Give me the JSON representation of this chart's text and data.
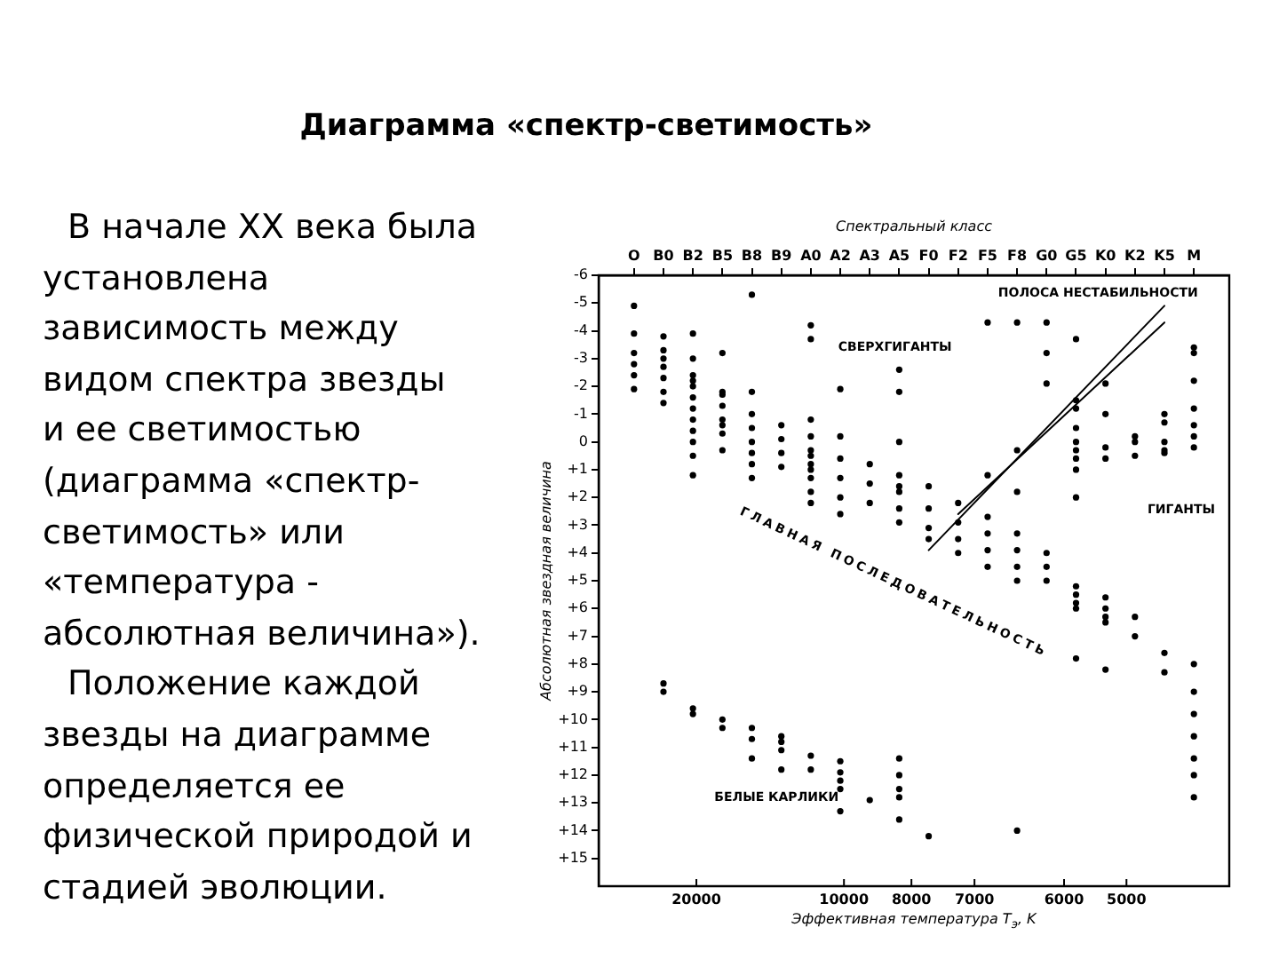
{
  "chart_data": {
    "type": "scatter",
    "title": "Диаграмма «спектр-светимость»",
    "xlabel": "Спектральный класс",
    "x2label": "Эффективная температура T$_{э}$, K",
    "ylabel": "Абсолютная звездная величина",
    "annotations": [
      "В начале XX века была\nустановлена\nзависимость между\nвидом спектра звезды\nи ее светимостью\n(диаграмма «спектр-\nсветимость» или\n«температура -\nабсолютная величина»).",
      "Положение каждой\nзвезды на диаграмме\nопределяется ее\nфизической природой и\nстадией эволюции.",
      "ПОЛОСА НЕСТАБИЛЬНОСТИ",
      "СВЕРХГИГАНТЫ",
      "ГИГАНТЫ",
      "ГЛАВНАЯ ПОСЛЕДОВАТЕЛЬНОСТЬ",
      "БЕЛЫЕ КАРЛИКИ",
      "20000",
      "10000",
      "8000",
      "7000",
      "6000",
      "5000"
    ],
    "categories": [
      "O",
      "B0",
      "B2",
      "B5",
      "B8",
      "B9",
      "A0",
      "A2",
      "A3",
      "A5",
      "F0",
      "F2",
      "F5",
      "F8",
      "G0",
      "G5",
      "K0",
      "K2",
      "K5",
      "M"
    ],
    "ylim": [
      16,
      -6
    ],
    "yticks": [
      -6,
      -5,
      -4,
      -3,
      -2,
      -1,
      0,
      {
        "value": 1,
        "label": "+1"
      },
      {
        "value": 2,
        "label": "+2"
      },
      {
        "value": 3,
        "label": "+3"
      },
      {
        "value": 4,
        "label": "+4"
      },
      {
        "value": 5,
        "label": "+5"
      },
      {
        "value": 6,
        "label": "+6"
      },
      {
        "value": 7,
        "label": "+7"
      },
      {
        "value": 8,
        "label": "+8"
      },
      {
        "value": 9,
        "label": "+9"
      },
      {
        "value": 10,
        "label": "+10"
      },
      {
        "value": 11,
        "label": "+11"
      },
      {
        "value": 12,
        "label": "+12"
      },
      {
        "value": 13,
        "label": "+13"
      },
      {
        "value": 14,
        "label": "+14"
      },
      {
        "value": 15,
        "label": "+15"
      }
    ],
    "marker": "circle",
    "series": [
      {
        "color": "#000000",
        "x": [
          "O",
          "O",
          "O",
          "O",
          "O",
          "O",
          "B0",
          "B0",
          "B0",
          "B0",
          "B0",
          "B0",
          "B0",
          "B2",
          "B2",
          "B2",
          "B2",
          "B2",
          "B2",
          "B2",
          "B2",
          "B2",
          "B2",
          "B2",
          "B2",
          "B5",
          "B5",
          "B5",
          "B5",
          "B5",
          "B5",
          "B5",
          "B5",
          "B8",
          "B8",
          "B8",
          "B8",
          "B8",
          "B8",
          "B8",
          "B8",
          "B9",
          "B9",
          "B9",
          "B9",
          "A0",
          "A0",
          "A0",
          "A0",
          "A0",
          "A0",
          "A0",
          "A0",
          "A0",
          "A0",
          "A0",
          "A2",
          "A2",
          "A2",
          "A2",
          "A2",
          "A2",
          "A3",
          "A3",
          "A3",
          "A5",
          "A5",
          "A5",
          "A5",
          "A5",
          "A5",
          "A5",
          "A5",
          "F0",
          "F0",
          "F0",
          "F0",
          "F2",
          "F2",
          "F2",
          "F2",
          "F5",
          "F5",
          "F5",
          "F5",
          "F5",
          "F5",
          "F8",
          "F8",
          "F8",
          "F8",
          "F8",
          "F8",
          "F8",
          "G0",
          "G0",
          "G0",
          "G0",
          "G0",
          "G0",
          "G5",
          "G5",
          "G5",
          "G5",
          "G5",
          "G5",
          "G5",
          "G5",
          "G5",
          "G5",
          "G5",
          "G5",
          "G5",
          "G5",
          "K0",
          "K0",
          "K0",
          "K0",
          "K0",
          "K0",
          "K0",
          "K0",
          "K0",
          "K2",
          "K2",
          "K2",
          "K2",
          "K2",
          "K5",
          "K5",
          "K5",
          "K5",
          "K5",
          "K5",
          "K5",
          "M",
          "M",
          "M",
          "M",
          "M",
          "M",
          "M",
          "M",
          "M",
          "M",
          "M",
          "M",
          "M",
          "M"
        ],
        "values": [
          -4.9,
          -3.9,
          -3.2,
          -2.8,
          -2.4,
          -1.9,
          -3.8,
          -3.3,
          -3,
          -2.7,
          -2.3,
          -1.8,
          -1.4,
          -3.9,
          -3,
          -2.4,
          -2.2,
          -2,
          -1.6,
          -1.2,
          -0.8,
          -0.4,
          0,
          0.5,
          1.2,
          -3.2,
          -1.8,
          -1.7,
          -1.3,
          -0.8,
          -0.6,
          -0.3,
          0.3,
          -5.3,
          -1.8,
          -1,
          -0.5,
          0,
          0.4,
          0.8,
          1.3,
          -0.6,
          -0.1,
          0.4,
          0.9,
          -4.2,
          -3.7,
          -0.8,
          -0.2,
          0.3,
          0.5,
          0.8,
          1,
          1.3,
          1.8,
          2.2,
          -1.9,
          -0.2,
          0.6,
          1.3,
          2,
          2.6,
          0.8,
          1.5,
          2.2,
          -2.6,
          -1.8,
          0,
          1.2,
          1.6,
          1.8,
          2.4,
          2.9,
          1.6,
          2.4,
          3.1,
          3.5,
          2.2,
          2.9,
          3.5,
          4,
          -4.3,
          1.2,
          2.7,
          3.3,
          3.9,
          4.5,
          -4.3,
          0.3,
          1.8,
          3.3,
          3.9,
          4.5,
          5,
          -4.3,
          -3.2,
          -2.1,
          4,
          4.5,
          5,
          -3.7,
          -1.5,
          -1.2,
          -0.5,
          0,
          0.3,
          0.6,
          1,
          2,
          5.2,
          5.5,
          5.8,
          6,
          7.8,
          -2.1,
          -1,
          0.2,
          0.6,
          5.6,
          6,
          6.3,
          6.5,
          8.2,
          -0.2,
          0,
          0.5,
          6.3,
          7,
          -1,
          -0.7,
          0,
          0.3,
          0.4,
          7.6,
          8.3,
          -3.4,
          -3.2,
          -2.2,
          -1.2,
          -0.6,
          -0.2,
          0.2,
          8,
          9,
          9.8,
          10.6,
          11.4,
          12,
          12.8
        ]
      },
      {
        "color": "#000000",
        "x": [
          "B0",
          "B0",
          "B2",
          "B2",
          "B5",
          "B5",
          "B8",
          "B8",
          "B8",
          "B9",
          "B9",
          "B9",
          "B9",
          "A0",
          "A0",
          "A2",
          "A2",
          "A2",
          "A2",
          "A2",
          "A3",
          "A5",
          "A5",
          "A5",
          "A5",
          "A5",
          "F0",
          "F8"
        ],
        "values": [
          8.7,
          9,
          9.6,
          9.8,
          10,
          10.3,
          10.3,
          10.7,
          11.4,
          10.6,
          10.8,
          11.1,
          11.8,
          11.3,
          11.8,
          11.5,
          11.9,
          12.2,
          12.5,
          13.3,
          12.9,
          11.4,
          12,
          12.5,
          12.8,
          13.6,
          14.2,
          14
        ]
      },
      {
        "type": "line",
        "marker": "none",
        "color": "#000000",
        "x": [
          "F0",
          "K5"
        ],
        "values": [
          3.9,
          -4.9
        ]
      },
      {
        "type": "line",
        "marker": "none",
        "color": "#000000",
        "x": [
          "F2",
          "K5"
        ],
        "values": [
          2.6,
          -4.3
        ]
      }
    ]
  }
}
